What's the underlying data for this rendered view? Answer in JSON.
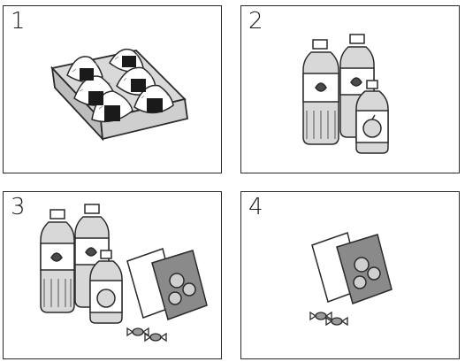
{
  "panels": [
    {
      "number": "1",
      "items": [
        "rice-ball-box-icon"
      ]
    },
    {
      "number": "2",
      "items": [
        "tea-bottle-icon",
        "tea-bottle-icon",
        "juice-bottle-icon"
      ]
    },
    {
      "number": "3",
      "items": [
        "tea-bottle-icon",
        "tea-bottle-icon",
        "juice-bottle-icon",
        "snack-bag-icon",
        "candy-icon"
      ]
    },
    {
      "number": "4",
      "items": [
        "snack-bag-icon",
        "candy-icon"
      ]
    }
  ],
  "colors": {
    "stroke": "#2a2a2a",
    "bottle_fill": "#d8d8d8",
    "label_fill": "#ffffff",
    "dark": "#4a4a4a"
  }
}
